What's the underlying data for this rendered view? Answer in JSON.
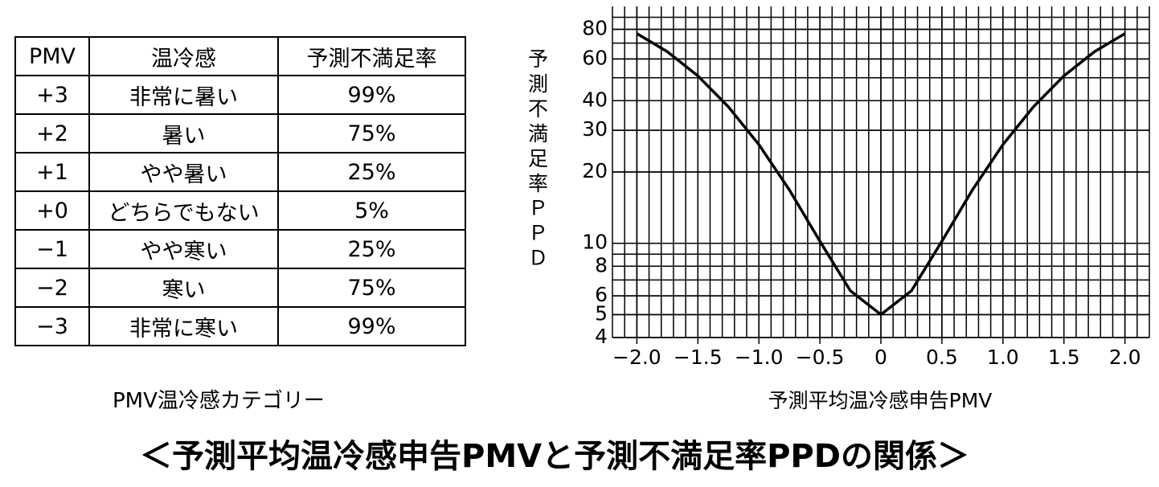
{
  "title": "＜予測平均温冷感申告PMVと予測不満足率PPDの関係＞",
  "table": {
    "header": [
      "PMV",
      "温冷感",
      "予測不満足率"
    ],
    "rows": [
      [
        "+3",
        "非常に暑い",
        "99%"
      ],
      [
        "+2",
        "暑い",
        "75%"
      ],
      [
        "+1",
        "やや暑い",
        "25%"
      ],
      [
        "+0",
        "どちらでもない",
        "5%"
      ],
      [
        "−1",
        "やや寒い",
        "25%"
      ],
      [
        "−2",
        "寒い",
        "75%"
      ],
      [
        "−3",
        "非常に寒い",
        "99%"
      ]
    ],
    "caption": "PMV温冷感カテゴリー"
  },
  "chart_data": {
    "type": "line",
    "x_label": "予測平均温冷感申告PMV",
    "y_label": "予測不満足率ＰＰＤ",
    "x": [
      -2,
      -1.75,
      -1.5,
      -1.25,
      -1,
      -0.75,
      -0.5,
      -0.25,
      0,
      0.25,
      0.5,
      0.75,
      1,
      1.25,
      1.5,
      1.75,
      2
    ],
    "values": [
      76.8,
      64.4,
      50.9,
      37.7,
      26.1,
      16.8,
      10.2,
      6.3,
      5,
      6.3,
      10.2,
      16.8,
      26.1,
      37.7,
      50.9,
      64.4,
      76.8
    ],
    "color": "#000000",
    "xlim": [
      -2.2,
      2.2
    ],
    "ylim": [
      4,
      100
    ],
    "log_y": true,
    "grid": true,
    "xticks": [
      {
        "value": -2,
        "label": "−2.0"
      },
      {
        "value": -1.5,
        "label": "−1.5"
      },
      {
        "value": -1,
        "label": "−1.0"
      },
      {
        "value": -0.5,
        "label": "−0.5"
      },
      0,
      0.5,
      {
        "value": 1,
        "label": "1.0"
      },
      1.5,
      {
        "value": 2,
        "label": "2.0"
      }
    ],
    "yticks": [
      4,
      5,
      6,
      8,
      10,
      20,
      30,
      40,
      60,
      80
    ]
  }
}
